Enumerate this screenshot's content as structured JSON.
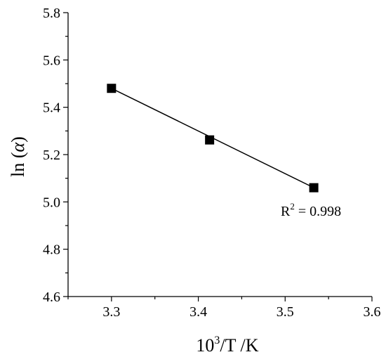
{
  "chart_data": {
    "type": "scatter",
    "title": "",
    "xlabel_base": "10",
    "xlabel_sup": "3",
    "xlabel_rest": "/T /K",
    "ylabel_prefix": "ln (",
    "ylabel_symbol": "α",
    "ylabel_suffix": ")",
    "xlim": [
      3.25,
      3.6
    ],
    "ylim": [
      4.6,
      5.8
    ],
    "xticks": [
      3.3,
      3.4,
      3.5,
      3.6
    ],
    "xtick_labels": [
      "3.3",
      "3.4",
      "3.5",
      "3.6"
    ],
    "yticks": [
      4.6,
      4.8,
      5.0,
      5.2,
      5.4,
      5.6,
      5.8
    ],
    "ytick_labels": [
      "4.6",
      "4.8",
      "5.0",
      "5.2",
      "5.4",
      "5.6",
      "5.8"
    ],
    "grid": false,
    "series": [
      {
        "x": [
          3.3,
          3.413,
          3.533
        ],
        "y": [
          5.48,
          5.262,
          5.06
        ],
        "marker": "square",
        "color": "#000000"
      }
    ],
    "fit_line": {
      "x": [
        3.3,
        3.533
      ],
      "y": [
        5.48,
        5.06
      ]
    },
    "annotation": {
      "base": "R",
      "sup": "2",
      "rest": " = 0.998"
    }
  }
}
